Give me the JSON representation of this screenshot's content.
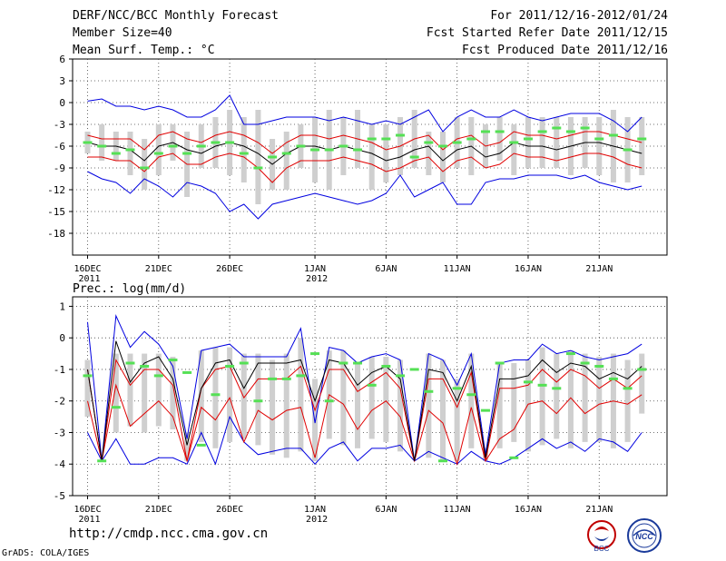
{
  "header": {
    "title": "DERF/NCC/BCC Monthly Forecast",
    "member": "Member Size=40",
    "variable": "Mean Surf. Temp.: °C",
    "period": "For 2011/12/16-2012/01/24",
    "started": "Fcst Started Refer Date 2011/12/15",
    "produced": "Fcst Produced Date 2011/12/16"
  },
  "footer": {
    "url": "http://cmdp.ncc.cma.gov.cn",
    "credit": "GrADS: COLA/IGES",
    "logo1_text": "BCC",
    "logo2_text": "NCC"
  },
  "colors": {
    "box": "#cfcfcf",
    "median": "#55e055",
    "mean": "#000000",
    "sd": "#e00000",
    "range": "#0000e0",
    "grid": "#444444"
  },
  "chart_data": [
    {
      "type": "line",
      "title": "Mean Surf. Temp.: °C",
      "x_tick_labels": [
        "16DEC\n2011",
        "21DEC",
        "26DEC",
        "1JAN\n2012",
        "6JAN",
        "11JAN",
        "16JAN",
        "21JAN"
      ],
      "x_tick_days": [
        1,
        6,
        11,
        17,
        22,
        27,
        32,
        37
      ],
      "ylim": [
        -21,
        6
      ],
      "yticks": [
        6,
        3,
        0,
        -3,
        -6,
        -9,
        -12,
        -15,
        -18
      ],
      "series": [
        {
          "name": "mean",
          "values": [
            -5.5,
            -6,
            -6,
            -6.5,
            -8,
            -6,
            -5.5,
            -6.5,
            -7,
            -6,
            -5.5,
            -6,
            -7,
            -8.5,
            -7,
            -6,
            -6,
            -6.5,
            -6,
            -6.5,
            -7,
            -8,
            -7.5,
            -6.5,
            -6,
            -8,
            -6.5,
            -6,
            -7.5,
            -7,
            -5.5,
            -6,
            -6,
            -6.5,
            -6,
            -5.5,
            -5.5,
            -6,
            -6.5,
            -7
          ]
        },
        {
          "name": "plus_sd",
          "values": [
            -4.5,
            -5,
            -5,
            -5,
            -6.5,
            -4.5,
            -4,
            -5,
            -5.5,
            -4.5,
            -4,
            -4.5,
            -5.5,
            -7,
            -5.5,
            -4.5,
            -4.5,
            -5,
            -4.5,
            -5,
            -5.5,
            -6.5,
            -6,
            -5,
            -4.5,
            -6.5,
            -5,
            -4.5,
            -6,
            -5.5,
            -4,
            -4.5,
            -4.5,
            -5,
            -4.5,
            -4,
            -4,
            -4.5,
            -5,
            -5.5
          ]
        },
        {
          "name": "minus_sd",
          "values": [
            -7.5,
            -7.5,
            -8,
            -8,
            -9.5,
            -7.5,
            -7,
            -8.5,
            -8.5,
            -7.5,
            -7,
            -7.5,
            -9,
            -11,
            -9,
            -8,
            -8,
            -8,
            -7.5,
            -8,
            -8.5,
            -9.5,
            -9,
            -8,
            -7.5,
            -9.5,
            -8,
            -7.5,
            -9,
            -8.5,
            -7,
            -7.5,
            -7.5,
            -8,
            -7.5,
            -7,
            -7,
            -7.5,
            -8.5,
            -9
          ]
        },
        {
          "name": "max",
          "values": [
            0.2,
            0.5,
            -0.5,
            -0.5,
            -1,
            -0.5,
            -1,
            -2,
            -2,
            -1,
            1,
            -3,
            -3,
            -2.5,
            -2,
            -2,
            -2,
            -2.5,
            -2,
            -2.5,
            -3,
            -2.5,
            -3,
            -2,
            -1,
            -4,
            -2,
            -1,
            -2,
            -2,
            -1,
            -2,
            -2.5,
            -2,
            -1.5,
            -1.5,
            -1.5,
            -2.5,
            -4,
            -2
          ]
        },
        {
          "name": "min",
          "values": [
            -9.5,
            -10.5,
            -11,
            -12.5,
            -10.5,
            -11.5,
            -13,
            -11,
            -11.5,
            -12.5,
            -15,
            -14,
            -16,
            -14,
            -13.5,
            -13,
            -12.5,
            -13,
            -13.5,
            -14,
            -13.5,
            -12.5,
            -10,
            -13,
            -12,
            -11,
            -14,
            -14,
            -11,
            -10.5,
            -10.5,
            -10,
            -10,
            -10,
            -10.5,
            -10,
            -11,
            -11.5,
            -12,
            -11.5
          ]
        },
        {
          "name": "median",
          "values": [
            -5.5,
            -6,
            -7,
            -6.5,
            -9,
            -7,
            -6,
            -7,
            -6,
            -5.5,
            -5.5,
            -7,
            -9,
            -7.5,
            -7,
            -6,
            -6.5,
            -6.5,
            -6,
            -6.5,
            -5,
            -5,
            -4.5,
            -7.5,
            -5.5,
            -6,
            -5.5,
            -5,
            -4,
            -4,
            -5.5,
            -5,
            -4,
            -3.5,
            -4,
            -3.5,
            -5,
            -4.5,
            -6.5,
            -5
          ]
        },
        {
          "name": "box_upper",
          "values": [
            -4,
            -3,
            -4,
            -4,
            -5,
            -3,
            -3,
            -4,
            -3,
            -2,
            -1,
            -2,
            -1,
            -5,
            -4,
            -3,
            -2,
            -1,
            -2,
            -1,
            -3,
            -3,
            -2,
            -1,
            -4,
            -4,
            -2,
            -2,
            -3,
            -2,
            -3,
            -2,
            -2,
            -2,
            -2,
            -2,
            -2,
            -1,
            -2,
            -2
          ]
        },
        {
          "name": "box_lower",
          "values": [
            -7,
            -8,
            -8,
            -10,
            -12,
            -10,
            -8,
            -13,
            -9,
            -9,
            -10,
            -11,
            -14,
            -12,
            -12,
            -9,
            -11,
            -12,
            -10,
            -9,
            -12,
            -11,
            -10,
            -9,
            -10,
            -11,
            -9,
            -10,
            -9,
            -8,
            -10,
            -9,
            -9,
            -9,
            -10,
            -9,
            -10,
            -11,
            -11,
            -10
          ]
        }
      ]
    },
    {
      "type": "line",
      "title": "Prec.: log(mm/d)",
      "x_tick_labels": [
        "16DEC\n2011",
        "21DEC",
        "26DEC",
        "1JAN\n2012",
        "6JAN",
        "11JAN",
        "16JAN",
        "21JAN"
      ],
      "x_tick_days": [
        1,
        6,
        11,
        17,
        22,
        27,
        32,
        37
      ],
      "ylim": [
        -5,
        1.3
      ],
      "yticks": [
        1,
        0,
        -1,
        -2,
        -3,
        -4,
        -5
      ],
      "series": [
        {
          "name": "mean",
          "values": [
            -1,
            -3.9,
            -0.1,
            -1.4,
            -0.8,
            -0.6,
            -1.3,
            -3.4,
            -1.6,
            -0.8,
            -0.7,
            -1.6,
            -0.8,
            -0.8,
            -0.8,
            -0.7,
            -2,
            -0.7,
            -0.8,
            -1.5,
            -1.1,
            -0.9,
            -1.3,
            -3.9,
            -1,
            -1.1,
            -2,
            -0.9,
            -3.8,
            -1.3,
            -1.3,
            -1.2,
            -0.7,
            -1.1,
            -0.8,
            -0.9,
            -1.3,
            -1.1,
            -1.3,
            -0.9
          ]
        },
        {
          "name": "plus_sd",
          "values": [
            -1,
            -3.9,
            -0.7,
            -1.5,
            -1,
            -1,
            -1.5,
            -3.9,
            -1.6,
            -1,
            -0.9,
            -1.9,
            -1.3,
            -1.3,
            -1.3,
            -0.9,
            -2.3,
            -1,
            -1,
            -1.7,
            -1.4,
            -1.1,
            -1.6,
            -3.9,
            -1.3,
            -1.3,
            -2.2,
            -1.1,
            -3.9,
            -1.6,
            -1.6,
            -1.5,
            -1,
            -1.4,
            -1,
            -1.2,
            -1.6,
            -1.3,
            -1.6,
            -1.2
          ]
        },
        {
          "name": "minus_sd",
          "values": [
            -2,
            -3.9,
            -1.5,
            -2.8,
            -2.4,
            -2,
            -2.5,
            -3.9,
            -2.2,
            -2.6,
            -1.9,
            -3.3,
            -2.3,
            -2.6,
            -2.3,
            -2.2,
            -3.8,
            -1.8,
            -2.1,
            -2.9,
            -2.3,
            -2,
            -2.5,
            -3.9,
            -2.3,
            -2.7,
            -4,
            -2.2,
            -3.9,
            -3.2,
            -2.9,
            -2.1,
            -2,
            -2.4,
            -1.9,
            -2.4,
            -2.1,
            -2,
            -2.1,
            -1.8
          ]
        },
        {
          "name": "min",
          "values": [
            -3,
            -3.9,
            -3.2,
            -4,
            -4,
            -3.8,
            -3.8,
            -4,
            -3,
            -4,
            -2.5,
            -3.3,
            -3.7,
            -3.6,
            -3.5,
            -3.5,
            -4,
            -3.5,
            -3.3,
            -3.9,
            -3.5,
            -3.5,
            -3.4,
            -3.9,
            -3.6,
            -3.8,
            -4,
            -3.6,
            -3.9,
            -4,
            -3.8,
            -3.5,
            -3.2,
            -3.5,
            -3.3,
            -3.6,
            -3.2,
            -3.3,
            -3.6,
            -3
          ]
        },
        {
          "name": "max",
          "values": [
            0.5,
            -3.9,
            0.7,
            -0.3,
            0.2,
            -0.2,
            -0.9,
            -3.2,
            -0.4,
            -0.3,
            -0.2,
            -0.6,
            -0.6,
            -0.6,
            -0.6,
            0.3,
            -2.7,
            -0.3,
            -0.4,
            -0.8,
            -0.6,
            -0.5,
            -0.7,
            -3.9,
            -0.5,
            -0.7,
            -1.5,
            -0.5,
            -3.7,
            -0.8,
            -0.7,
            -0.7,
            -0.2,
            -0.5,
            -0.4,
            -0.6,
            -0.7,
            -0.6,
            -0.5,
            -0.2
          ]
        },
        {
          "name": "median",
          "values": [
            -1.2,
            -3.9,
            -2.2,
            -0.8,
            -0.9,
            -1.2,
            -0.7,
            -1.1,
            -3.4,
            -1.8,
            -0.9,
            -0.8,
            -2,
            -1.3,
            -1.3,
            -1.2,
            -0.5,
            -2,
            -0.8,
            -0.8,
            -1.5,
            -0.9,
            -1.2,
            -1,
            -1.7,
            -3.9,
            -1.6,
            -1.8,
            -2.3,
            -0.8,
            -3.8,
            -1.4,
            -1.5,
            -1.6,
            -0.5,
            -0.8,
            -0.9,
            -1.3,
            -1.6,
            -1
          ]
        },
        {
          "name": "box_upper",
          "values": [
            -0.7,
            -3.9,
            -0.5,
            -0.5,
            -0.5,
            -0.5,
            -0.6,
            -3,
            -0.4,
            -0.3,
            -0.3,
            -0.5,
            -0.5,
            -0.7,
            -0.5,
            0,
            -1.3,
            -0.4,
            -0.4,
            -0.8,
            -0.6,
            -0.6,
            -0.7,
            -3.9,
            -0.5,
            -0.7,
            -1.3,
            -0.5,
            -3.5,
            -0.8,
            -0.8,
            -0.7,
            -0.3,
            -0.5,
            -0.4,
            -0.5,
            -0.6,
            -0.5,
            -0.7,
            -0.5
          ]
        },
        {
          "name": "box_lower",
          "values": [
            -2.5,
            -3.9,
            -3,
            -2.8,
            -3,
            -2.8,
            -2.9,
            -3.9,
            -3.3,
            -3.5,
            -3.3,
            -3.2,
            -3.4,
            -3.7,
            -3.8,
            -3.6,
            -3.9,
            -3.2,
            -3.4,
            -3.5,
            -3.2,
            -3.3,
            -3.6,
            -3.9,
            -3.8,
            -3.9,
            -3.9,
            -3.5,
            -3.9,
            -3.5,
            -3.3,
            -3.6,
            -3.4,
            -3.2,
            -3.5,
            -3.3,
            -3.3,
            -3.5,
            -3.3,
            -2.4
          ]
        }
      ]
    }
  ]
}
